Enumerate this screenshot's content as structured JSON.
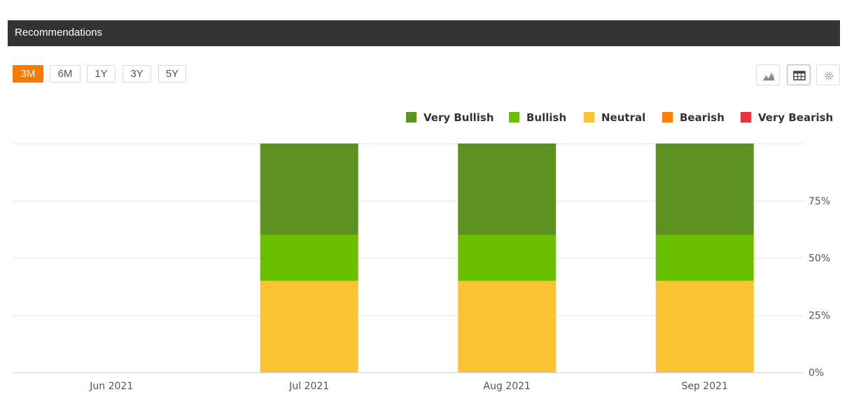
{
  "header": {
    "title": "Recommendations"
  },
  "range_buttons": [
    "3M",
    "6M",
    "1Y",
    "3Y",
    "5Y"
  ],
  "active_range": "3M",
  "tools": [
    "area-chart-icon",
    "table-icon",
    "settings-gear-icon"
  ],
  "legend": [
    {
      "name": "Very Bullish",
      "color": "#5d9120"
    },
    {
      "name": "Bullish",
      "color": "#6abf00"
    },
    {
      "name": "Neutral",
      "color": "#fbc232"
    },
    {
      "name": "Bearish",
      "color": "#ff7f00"
    },
    {
      "name": "Very Bearish",
      "color": "#e8333a"
    }
  ],
  "chart_data": {
    "type": "bar",
    "stacked": true,
    "categories": [
      "Jun 2021",
      "Jul 2021",
      "Aug 2021",
      "Sep 2021"
    ],
    "series": [
      {
        "name": "Neutral",
        "color": "#fbc232",
        "values": [
          0,
          40,
          40,
          40
        ]
      },
      {
        "name": "Bullish",
        "color": "#6abf00",
        "values": [
          0,
          20,
          20,
          20
        ]
      },
      {
        "name": "Very Bullish",
        "color": "#5d9120",
        "values": [
          0,
          40,
          40,
          40
        ]
      },
      {
        "name": "Bearish",
        "color": "#ff7f00",
        "values": [
          0,
          0,
          0,
          0
        ]
      },
      {
        "name": "Very Bearish",
        "color": "#e8333a",
        "values": [
          0,
          0,
          0,
          0
        ]
      }
    ],
    "y_ticks": [
      "0%",
      "25%",
      "50%",
      "75%"
    ],
    "ylim": [
      0,
      100
    ],
    "y_axis_side": "right",
    "grid": true,
    "legend_position": "top-right"
  }
}
